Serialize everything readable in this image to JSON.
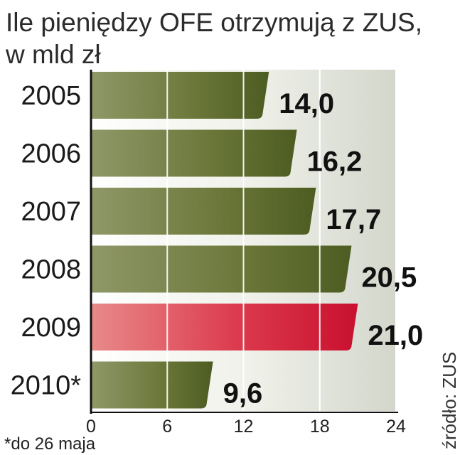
{
  "chart_data": {
    "type": "bar",
    "orientation": "horizontal",
    "title": "Ile pieniędzy OFE otrzymują z ZUS,",
    "subtitle": "w mld zł",
    "categories": [
      "2005",
      "2006",
      "2007",
      "2008",
      "2009",
      "2010*"
    ],
    "values": [
      14.0,
      16.2,
      17.7,
      20.5,
      21.0,
      9.6
    ],
    "value_labels": [
      "14,0",
      "16,2",
      "17,7",
      "20,5",
      "21,0",
      "9,6"
    ],
    "highlight_index": 4,
    "xlim": [
      0,
      24
    ],
    "xticks": [
      "0",
      "6",
      "12",
      "18",
      "24"
    ],
    "grid": true,
    "footnote": "*do 26 maja",
    "source": "źródło: ZUS",
    "colors": {
      "bar": "#5a6a2e",
      "bar_highlight": "#d8203c",
      "highlight_label": "#c4163a",
      "background_panel": "#d9dbd2"
    }
  }
}
